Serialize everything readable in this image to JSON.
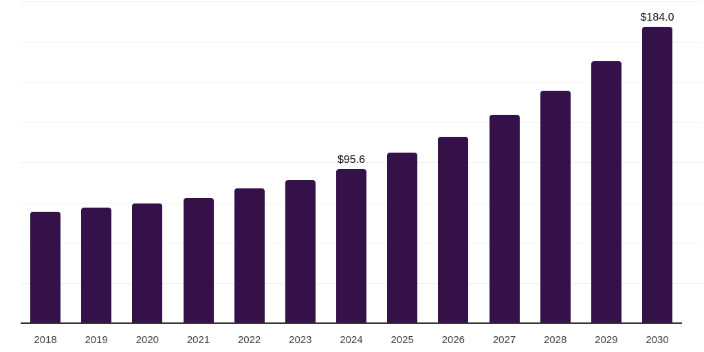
{
  "chart_data": {
    "type": "bar",
    "title": "",
    "xlabel": "",
    "ylabel": "",
    "categories": [
      "2018",
      "2019",
      "2020",
      "2021",
      "2022",
      "2023",
      "2024",
      "2025",
      "2026",
      "2027",
      "2028",
      "2029",
      "2030"
    ],
    "values": [
      69.2,
      71.8,
      74.5,
      77.9,
      83.6,
      89.0,
      95.6,
      105.8,
      115.9,
      129.4,
      144.4,
      162.8,
      184.0
    ],
    "data_labels": [
      {
        "category": "2024",
        "text": "$95.6"
      },
      {
        "category": "2030",
        "text": "$184.0"
      }
    ],
    "ylim": [
      0,
      200
    ],
    "gridline_step": 25,
    "grid": "horizontal",
    "y_axis_tick_labels_visible": false,
    "legend": "none"
  },
  "colors": {
    "background": "#ffffff",
    "bar": "#341149",
    "axis_line": "#2e2e2e",
    "gridline": "#f0f0f2",
    "tick_label": "#404040",
    "data_label": "#0a0a0a"
  }
}
